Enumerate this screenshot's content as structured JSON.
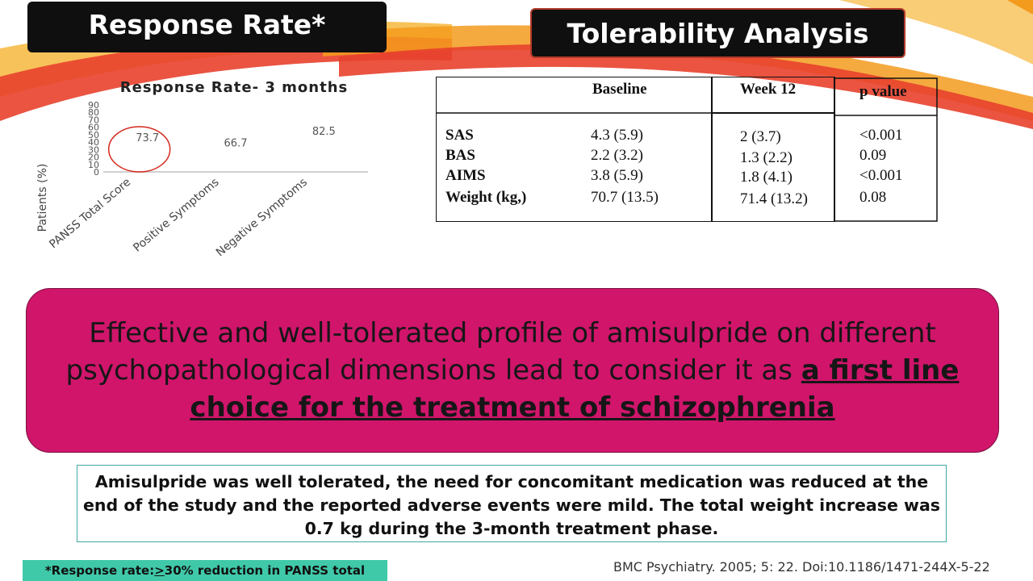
{
  "slide": {
    "left_title": "Response Rate*",
    "right_title": "Tolerability Analysis",
    "colors": {
      "title_bg": "#0f0f0f",
      "banner_bg": "#d0156b",
      "footnote_bg": "#40c9a9",
      "note_border": "#3fa9a1",
      "accent_red": "#e8412c",
      "accent_orange": "#f39b1d"
    }
  },
  "chart_data": {
    "type": "bar",
    "title": "Response Rate- 3 months",
    "ylabel": "Patients (%)",
    "xlabel": "",
    "categories": [
      "PANSS Total Score",
      "Positive Symptoms",
      "Negative Symptoms"
    ],
    "values": [
      73.7,
      66.7,
      82.5
    ],
    "data_labels": [
      "73.7",
      "66.7",
      "82.5"
    ],
    "ylim": [
      0,
      90
    ],
    "y_ticks": [
      "0",
      "10",
      "20",
      "30",
      "40",
      "50",
      "60",
      "70",
      "80",
      "90"
    ],
    "grid": false,
    "legend": "none",
    "annotation": "red ellipse around the PANSS Total Score value label"
  },
  "table": {
    "headers": [
      "",
      "Baseline",
      "Week 12",
      "p value"
    ],
    "rows": [
      {
        "label": "SAS",
        "baseline": "4.3 (5.9)",
        "week12": "2 (3.7)",
        "p": "<0.001"
      },
      {
        "label": "BAS",
        "baseline": "2.2 (3.2)",
        "week12": "1.3 (2.2)",
        "p": "0.09"
      },
      {
        "label": "AIMS",
        "baseline": "3.8 (5.9)",
        "week12": "1.8 (4.1)",
        "p": "<0.001"
      },
      {
        "label": "Weight (kg,)",
        "baseline": "70.7 (13.5)",
        "week12": "71.4 (13.2)",
        "p": "0.08"
      }
    ]
  },
  "banner": {
    "text_plain": "Effective and well-tolerated profile of amisulpride on different psychopathological dimensions lead to consider it as ",
    "text_emphasis": "a first line choice for the treatment of schizophrenia"
  },
  "note": {
    "text": "Amisulpride was well tolerated, the need for concomitant medication was reduced at the end of the study and the reported adverse events were mild. The total weight increase was 0.7 kg during the 3-month treatment phase."
  },
  "footnote": {
    "prefix": "*Response rate: ",
    "underlined": ">",
    "suffix": "30% reduction in PANSS total"
  },
  "citation": "BMC Psychiatry. 2005; 5: 22. Doi:10.1186/1471-244X-5-22"
}
